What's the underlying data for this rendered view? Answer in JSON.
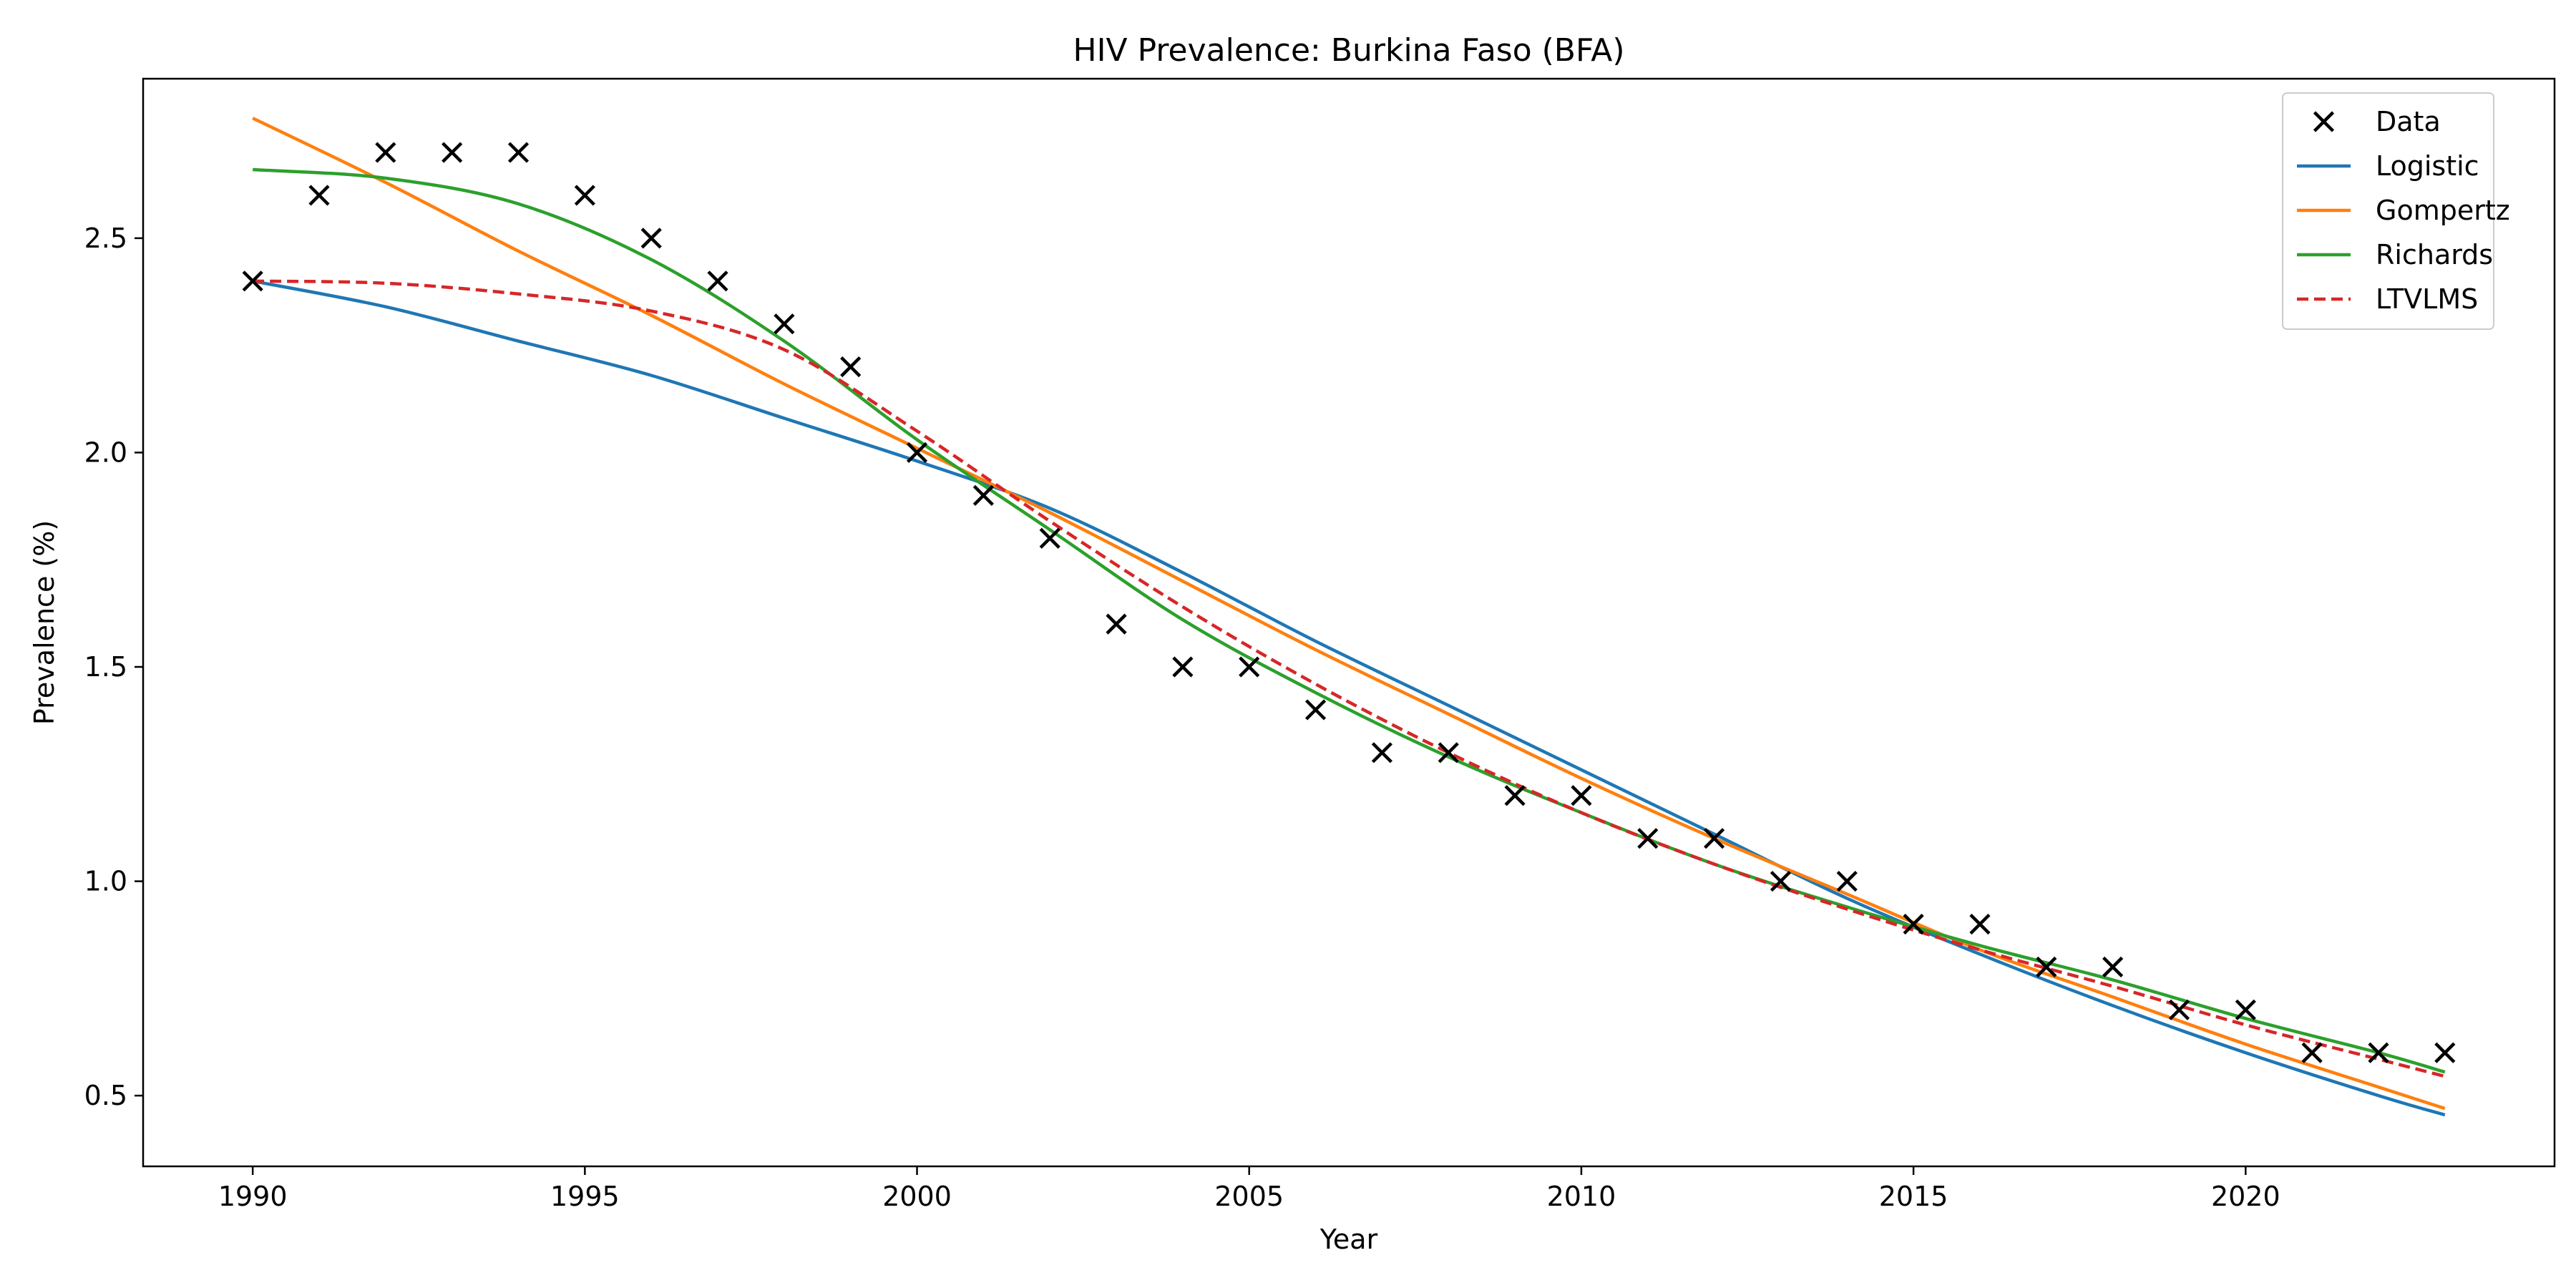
{
  "chart_data": {
    "type": "line",
    "title": "HIV Prevalence: Burkina Faso (BFA)",
    "xlabel": "Year",
    "ylabel": "Prevalence (%)",
    "xlim": [
      1988.35,
      2024.65
    ],
    "ylim": [
      0.335,
      2.872
    ],
    "xticks": [
      1990,
      1995,
      2000,
      2005,
      2010,
      2015,
      2020
    ],
    "yticks": [
      0.5,
      1.0,
      1.5,
      2.0,
      2.5
    ],
    "xtick_labels": [
      "1990",
      "1995",
      "2000",
      "2005",
      "2010",
      "2015",
      "2020"
    ],
    "ytick_labels": [
      "0.5",
      "1.0",
      "1.5",
      "2.0",
      "2.5"
    ],
    "grid": false,
    "legend_position": "top-right",
    "scatter": {
      "name": "Data",
      "color": "#000000",
      "marker": "x",
      "x": [
        1990,
        1991,
        1992,
        1993,
        1994,
        1995,
        1996,
        1997,
        1998,
        1999,
        2000,
        2001,
        2002,
        2003,
        2004,
        2005,
        2006,
        2007,
        2008,
        2009,
        2010,
        2011,
        2012,
        2013,
        2014,
        2015,
        2016,
        2017,
        2018,
        2019,
        2020,
        2021,
        2022,
        2023
      ],
      "y": [
        2.4,
        2.6,
        2.7,
        2.7,
        2.7,
        2.6,
        2.5,
        2.4,
        2.3,
        2.2,
        2.0,
        1.9,
        1.8,
        1.6,
        1.5,
        1.5,
        1.4,
        1.3,
        1.3,
        1.2,
        1.2,
        1.1,
        1.1,
        1.0,
        1.0,
        0.9,
        0.9,
        0.8,
        0.8,
        0.7,
        0.7,
        0.6,
        0.6,
        0.6
      ]
    },
    "series": [
      {
        "name": "Logistic",
        "color": "#1f77b4",
        "style": "solid",
        "x": [
          1990,
          1992,
          1994,
          1996,
          1998,
          2000,
          2002,
          2004,
          2006,
          2008,
          2010,
          2012,
          2014,
          2016,
          2018,
          2020,
          2022,
          2023
        ],
        "y": [
          2.4,
          2.34,
          2.26,
          2.18,
          2.08,
          1.98,
          1.87,
          1.72,
          1.56,
          1.41,
          1.26,
          1.11,
          0.96,
          0.83,
          0.71,
          0.6,
          0.5,
          0.455
        ]
      },
      {
        "name": "Gompertz",
        "color": "#ff7f0e",
        "style": "solid",
        "x": [
          1990,
          1992,
          1994,
          1996,
          1998,
          2000,
          2002,
          2004,
          2006,
          2008,
          2010,
          2012,
          2014,
          2016,
          2018,
          2020,
          2022,
          2023
        ],
        "y": [
          2.78,
          2.63,
          2.47,
          2.32,
          2.16,
          2.01,
          1.86,
          1.7,
          1.54,
          1.39,
          1.24,
          1.1,
          0.97,
          0.84,
          0.73,
          0.62,
          0.52,
          0.47
        ]
      },
      {
        "name": "Richards",
        "color": "#2ca02c",
        "style": "solid",
        "x": [
          1990,
          1992,
          1994,
          1996,
          1998,
          2000,
          2002,
          2004,
          2006,
          2008,
          2010,
          2012,
          2014,
          2016,
          2018,
          2020,
          2022,
          2023
        ],
        "y": [
          2.66,
          2.64,
          2.58,
          2.45,
          2.26,
          2.03,
          1.82,
          1.61,
          1.44,
          1.29,
          1.16,
          1.04,
          0.94,
          0.85,
          0.77,
          0.68,
          0.6,
          0.555
        ]
      },
      {
        "name": "LTVLMS",
        "color": "#d62728",
        "style": "dashed",
        "x": [
          1990,
          1992,
          1994,
          1996,
          1998,
          2000,
          2002,
          2004,
          2006,
          2008,
          2010,
          2012,
          2014,
          2016,
          2018,
          2020,
          2022,
          2023
        ],
        "y": [
          2.4,
          2.395,
          2.37,
          2.33,
          2.24,
          2.05,
          1.84,
          1.64,
          1.46,
          1.3,
          1.16,
          1.04,
          0.935,
          0.84,
          0.755,
          0.665,
          0.585,
          0.545
        ]
      }
    ]
  }
}
